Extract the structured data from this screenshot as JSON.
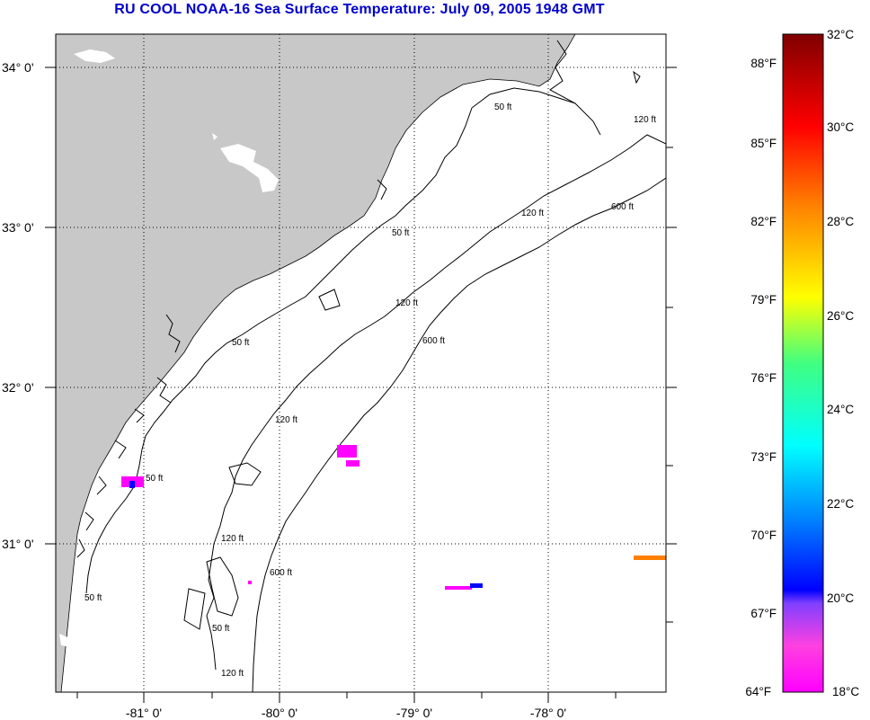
{
  "title": "RU COOL  NOAA-16  Sea Surface Temperature:  July 09, 2005 1948 GMT",
  "map": {
    "lat_labels": [
      "34° 0'",
      "33° 0'",
      "32° 0'",
      "31° 0'"
    ],
    "lon_labels": [
      "-81° 0'",
      "-80° 0'",
      "-79° 0'",
      "-78° 0'"
    ],
    "contour_labels": {
      "c50a": "50 ft",
      "c50b": "50 ft",
      "c50c": "50 ft",
      "c50d": "50 ft",
      "c50e": "50 ft",
      "c50f": "50 ft",
      "c120a": "120 ft",
      "c120b": "120 ft",
      "c120c": "120 ft",
      "c120d": "120 ft",
      "c120e": "120 ft",
      "c120f": "120 ft",
      "c600a": "600 ft",
      "c600b": "600 ft",
      "c600c": "600 ft"
    }
  },
  "colorbar": {
    "f_labels": [
      "88°F",
      "85°F",
      "82°F",
      "79°F",
      "76°F",
      "73°F",
      "70°F",
      "67°F",
      "64°F"
    ],
    "c_labels": [
      "32°C",
      "30°C",
      "28°C",
      "26°C",
      "24°C",
      "22°C",
      "20°C",
      "18°C"
    ],
    "colors": {
      "c32": "#800000",
      "c30": "#ff0000",
      "c28": "#ff8000",
      "c26": "#ffff00",
      "c24": "#40ff80",
      "c23": "#00ffff",
      "c22": "#0080ff",
      "c20": "#0000ff",
      "c19": "#8040ff",
      "c18": "#ff00ff"
    }
  },
  "colors": {
    "land": "#c8c8c8",
    "title": "#0000cc",
    "ocean": "#ffffff"
  }
}
